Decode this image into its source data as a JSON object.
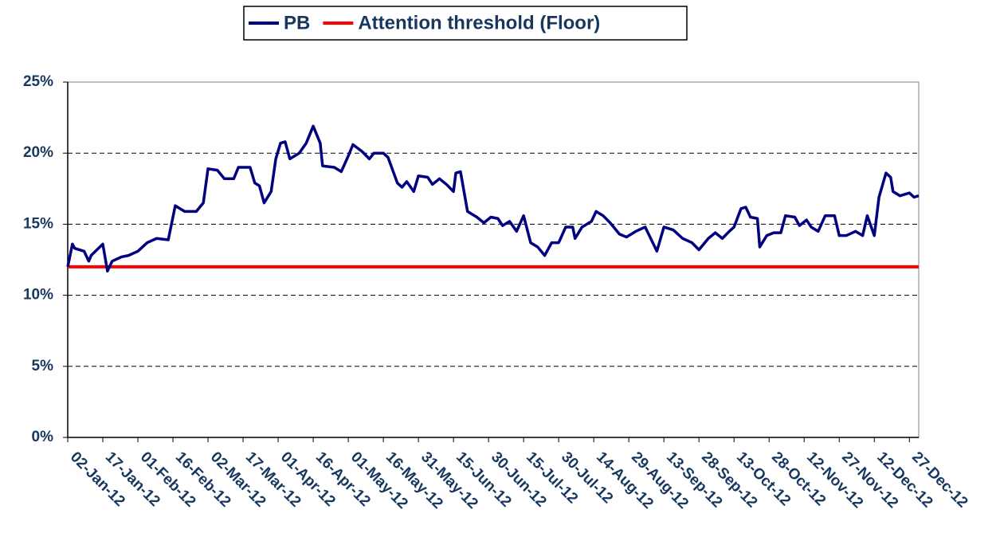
{
  "chart_data": {
    "type": "line",
    "xlim": [
      "2012-01-02",
      "2012-12-31"
    ],
    "xticks": [
      {
        "value": "2012-01-02",
        "label": "02-Jan-12"
      },
      {
        "value": "2012-01-17",
        "label": "17-Jan-12"
      },
      {
        "value": "2012-02-01",
        "label": "01-Feb-12"
      },
      {
        "value": "2012-02-16",
        "label": "16-Feb-12"
      },
      {
        "value": "2012-03-02",
        "label": "02-Mar-12"
      },
      {
        "value": "2012-03-17",
        "label": "17-Mar-12"
      },
      {
        "value": "2012-04-01",
        "label": "01-Apr-12"
      },
      {
        "value": "2012-04-16",
        "label": "16-Apr-12"
      },
      {
        "value": "2012-05-01",
        "label": "01-May-12"
      },
      {
        "value": "2012-05-16",
        "label": "16-May-12"
      },
      {
        "value": "2012-05-31",
        "label": "31-May-12"
      },
      {
        "value": "2012-06-15",
        "label": "15-Jun-12"
      },
      {
        "value": "2012-06-30",
        "label": "30-Jun-12"
      },
      {
        "value": "2012-07-15",
        "label": "15-Jul-12"
      },
      {
        "value": "2012-07-30",
        "label": "30-Jul-12"
      },
      {
        "value": "2012-08-14",
        "label": "14-Aug-12"
      },
      {
        "value": "2012-08-29",
        "label": "29-Aug-12"
      },
      {
        "value": "2012-09-13",
        "label": "13-Sep-12"
      },
      {
        "value": "2012-09-28",
        "label": "28-Sep-12"
      },
      {
        "value": "2012-10-13",
        "label": "13-Oct-12"
      },
      {
        "value": "2012-10-28",
        "label": "28-Oct-12"
      },
      {
        "value": "2012-11-12",
        "label": "12-Nov-12"
      },
      {
        "value": "2012-11-27",
        "label": "27-Nov-12"
      },
      {
        "value": "2012-12-12",
        "label": "12-Dec-12"
      },
      {
        "value": "2012-12-27",
        "label": "27-Dec-12"
      }
    ],
    "ylim": [
      0,
      25
    ],
    "yticks": [
      {
        "value": 0,
        "label": "0%"
      },
      {
        "value": 5,
        "label": "5%"
      },
      {
        "value": 10,
        "label": "10%"
      },
      {
        "value": 15,
        "label": "15%"
      },
      {
        "value": 20,
        "label": "20%"
      },
      {
        "value": 25,
        "label": "25%"
      }
    ],
    "grid": true,
    "legend": "top",
    "series": [
      {
        "name": "PB",
        "color": "#000080",
        "x": [
          "2012-01-02",
          "2012-01-04",
          "2012-01-05",
          "2012-01-09",
          "2012-01-11",
          "2012-01-12",
          "2012-01-17",
          "2012-01-19",
          "2012-01-21",
          "2012-01-25",
          "2012-01-28",
          "2012-02-01",
          "2012-02-05",
          "2012-02-09",
          "2012-02-14",
          "2012-02-17",
          "2012-02-21",
          "2012-02-26",
          "2012-02-29",
          "2012-03-02",
          "2012-03-06",
          "2012-03-09",
          "2012-03-13",
          "2012-03-15",
          "2012-03-20",
          "2012-03-22",
          "2012-03-24",
          "2012-03-26",
          "2012-03-29",
          "2012-03-31",
          "2012-04-02",
          "2012-04-04",
          "2012-04-06",
          "2012-04-10",
          "2012-04-13",
          "2012-04-16",
          "2012-04-19",
          "2012-04-20",
          "2012-04-25",
          "2012-04-28",
          "2012-05-01",
          "2012-05-03",
          "2012-05-07",
          "2012-05-10",
          "2012-05-12",
          "2012-05-16",
          "2012-05-18",
          "2012-05-22",
          "2012-05-24",
          "2012-05-26",
          "2012-05-29",
          "2012-05-31",
          "2012-06-04",
          "2012-06-06",
          "2012-06-09",
          "2012-06-12",
          "2012-06-15",
          "2012-06-16",
          "2012-06-18",
          "2012-06-21",
          "2012-06-25",
          "2012-06-28",
          "2012-07-01",
          "2012-07-04",
          "2012-07-06",
          "2012-07-09",
          "2012-07-12",
          "2012-07-15",
          "2012-07-18",
          "2012-07-21",
          "2012-07-24",
          "2012-07-27",
          "2012-07-30",
          "2012-08-02",
          "2012-08-05",
          "2012-08-06",
          "2012-08-09",
          "2012-08-13",
          "2012-08-15",
          "2012-08-18",
          "2012-08-21",
          "2012-08-25",
          "2012-08-28",
          "2012-09-01",
          "2012-09-05",
          "2012-09-10",
          "2012-09-13",
          "2012-09-17",
          "2012-09-21",
          "2012-09-25",
          "2012-09-28",
          "2012-10-02",
          "2012-10-05",
          "2012-10-08",
          "2012-10-11",
          "2012-10-13",
          "2012-10-16",
          "2012-10-18",
          "2012-10-20",
          "2012-10-23",
          "2012-10-24",
          "2012-10-27",
          "2012-10-30",
          "2012-11-02",
          "2012-11-04",
          "2012-11-08",
          "2012-11-10",
          "2012-11-13",
          "2012-11-15",
          "2012-11-18",
          "2012-11-21",
          "2012-11-25",
          "2012-11-27",
          "2012-11-30",
          "2012-12-04",
          "2012-12-07",
          "2012-12-09",
          "2012-12-12",
          "2012-12-14",
          "2012-12-17",
          "2012-12-19",
          "2012-12-20",
          "2012-12-23",
          "2012-12-27",
          "2012-12-29",
          "2012-12-31"
        ],
        "values": [
          12.0,
          13.6,
          13.3,
          13.1,
          12.4,
          12.8,
          13.6,
          11.7,
          12.4,
          12.7,
          12.8,
          13.1,
          13.7,
          14.0,
          13.9,
          16.3,
          15.9,
          15.9,
          16.5,
          18.9,
          18.8,
          18.2,
          18.2,
          19.0,
          19.0,
          17.9,
          17.7,
          16.5,
          17.3,
          19.6,
          20.7,
          20.8,
          19.6,
          20.0,
          20.7,
          21.9,
          20.7,
          19.1,
          19.0,
          18.7,
          19.8,
          20.6,
          20.1,
          19.6,
          20.0,
          20.0,
          19.7,
          17.9,
          17.6,
          18.0,
          17.3,
          18.4,
          18.3,
          17.8,
          18.2,
          17.8,
          17.3,
          18.6,
          18.7,
          15.9,
          15.5,
          15.1,
          15.5,
          15.4,
          14.9,
          15.2,
          14.5,
          15.6,
          13.7,
          13.4,
          12.8,
          13.7,
          13.7,
          14.8,
          14.8,
          14.0,
          14.8,
          15.2,
          15.9,
          15.6,
          15.1,
          14.3,
          14.1,
          14.5,
          14.8,
          13.1,
          14.8,
          14.6,
          14.0,
          13.7,
          13.2,
          14.0,
          14.4,
          14.0,
          14.5,
          14.8,
          16.1,
          16.2,
          15.5,
          15.4,
          13.4,
          14.2,
          14.4,
          14.4,
          15.6,
          15.5,
          14.9,
          15.3,
          14.8,
          14.5,
          15.6,
          15.6,
          14.2,
          14.2,
          14.5,
          14.2,
          15.6,
          14.2,
          16.9,
          18.6,
          18.3,
          17.3,
          17.0,
          17.2,
          16.9,
          17.0
        ]
      },
      {
        "name": "Attention threshold (Floor)",
        "color": "#ff0000",
        "x": [
          "2012-01-02",
          "2012-12-31"
        ],
        "values": [
          12,
          12
        ]
      }
    ]
  }
}
